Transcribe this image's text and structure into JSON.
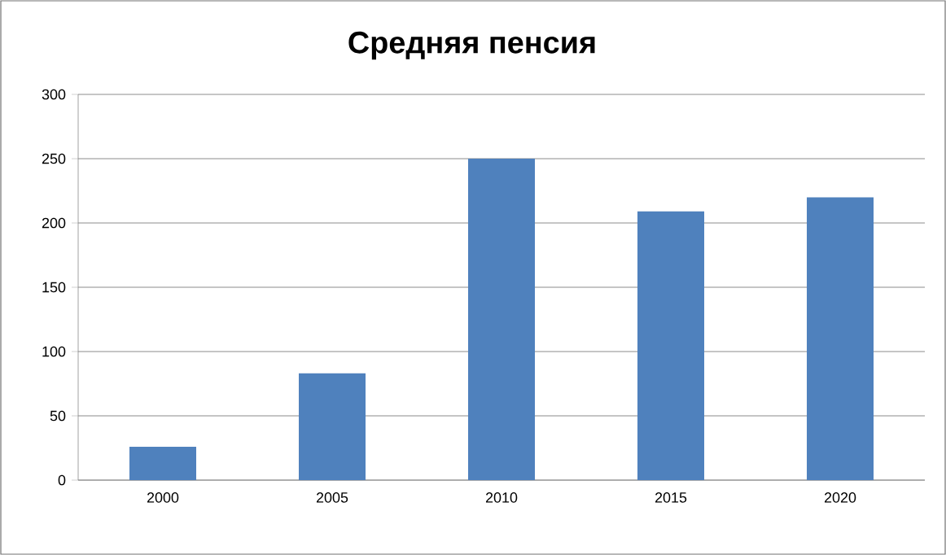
{
  "chart_data": {
    "type": "bar",
    "title": "Средняя пенсия",
    "categories": [
      "2000",
      "2005",
      "2010",
      "2015",
      "2020"
    ],
    "values": [
      26,
      83,
      250,
      209,
      220
    ],
    "color": "#4f81bd",
    "ylim": [
      0,
      300
    ],
    "yticks": [
      0,
      50,
      100,
      150,
      200,
      250,
      300
    ],
    "grid": "y"
  }
}
